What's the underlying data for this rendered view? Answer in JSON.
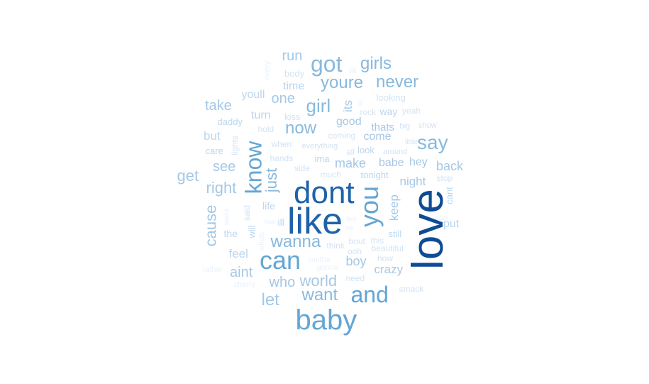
{
  "wordcloud": {
    "palette": {
      "level1": "#e9f2fb",
      "level2": "#d3e3f3",
      "level3": "#bcd6ee",
      "level4": "#a5c8e6",
      "level5": "#88b9dd",
      "level6": "#64a6d4",
      "level7": "#3d84c0",
      "level8": "#1f62a8",
      "level9": "#0f4c95"
    },
    "words": [
      {
        "text": "love",
        "level": 9
      },
      {
        "text": "like",
        "level": 8
      },
      {
        "text": "dont",
        "level": 8
      },
      {
        "text": "baby",
        "level": 6
      },
      {
        "text": "and",
        "level": 6
      },
      {
        "text": "you",
        "level": 6
      },
      {
        "text": "can",
        "level": 6
      },
      {
        "text": "know",
        "level": 6
      },
      {
        "text": "got",
        "level": 5
      },
      {
        "text": "girl",
        "level": 5
      },
      {
        "text": "say",
        "level": 5
      },
      {
        "text": "want",
        "level": 5
      },
      {
        "text": "wanna",
        "level": 5
      },
      {
        "text": "now",
        "level": 5
      },
      {
        "text": "youre",
        "level": 5
      },
      {
        "text": "never",
        "level": 5
      },
      {
        "text": "girls",
        "level": 5
      },
      {
        "text": "just",
        "level": 5
      },
      {
        "text": "let",
        "level": 4
      },
      {
        "text": "world",
        "level": 4
      },
      {
        "text": "who",
        "level": 4
      },
      {
        "text": "aint",
        "level": 4
      },
      {
        "text": "cause",
        "level": 4
      },
      {
        "text": "right",
        "level": 4
      },
      {
        "text": "see",
        "level": 4
      },
      {
        "text": "get",
        "level": 4
      },
      {
        "text": "take",
        "level": 4
      },
      {
        "text": "one",
        "level": 4
      },
      {
        "text": "run",
        "level": 4
      },
      {
        "text": "back",
        "level": 4
      },
      {
        "text": "night",
        "level": 4
      },
      {
        "text": "crazy",
        "level": 4
      },
      {
        "text": "boy",
        "level": 4
      },
      {
        "text": "make",
        "level": 4
      },
      {
        "text": "babe",
        "level": 4
      },
      {
        "text": "hey",
        "level": 4
      },
      {
        "text": "keep",
        "level": 4
      },
      {
        "text": "good",
        "level": 4
      },
      {
        "text": "come",
        "level": 4
      },
      {
        "text": "thats",
        "level": 4
      },
      {
        "text": "its",
        "level": 4
      },
      {
        "text": "time",
        "level": 3
      },
      {
        "text": "youll",
        "level": 3
      },
      {
        "text": "turn",
        "level": 3
      },
      {
        "text": "but",
        "level": 3
      },
      {
        "text": "feel",
        "level": 3
      },
      {
        "text": "put",
        "level": 3
      },
      {
        "text": "cant",
        "level": 3
      },
      {
        "text": "way",
        "level": 3
      },
      {
        "text": "life",
        "level": 3
      },
      {
        "text": "ill",
        "level": 3
      },
      {
        "text": "the",
        "level": 3
      },
      {
        "text": "will",
        "level": 3
      },
      {
        "text": "ima",
        "level": 3
      },
      {
        "text": "daddy",
        "level": 3
      },
      {
        "text": "care",
        "level": 3
      },
      {
        "text": "tonight",
        "level": 3
      },
      {
        "text": "look",
        "level": 3
      },
      {
        "text": "still",
        "level": 3
      },
      {
        "text": "kiss",
        "level": 2
      },
      {
        "text": "body",
        "level": 2
      },
      {
        "text": "looking",
        "level": 2
      },
      {
        "text": "rock",
        "level": 2
      },
      {
        "text": "yeah",
        "level": 2
      },
      {
        "text": "hold",
        "level": 2
      },
      {
        "text": "when",
        "level": 2
      },
      {
        "text": "hands",
        "level": 2
      },
      {
        "text": "side",
        "level": 2
      },
      {
        "text": "lights",
        "level": 2
      },
      {
        "text": "much",
        "level": 2
      },
      {
        "text": "everything",
        "level": 2
      },
      {
        "text": "coming",
        "level": 2
      },
      {
        "text": "all",
        "level": 2
      },
      {
        "text": "around",
        "level": 2
      },
      {
        "text": "little",
        "level": 2
      },
      {
        "text": "big",
        "level": 2
      },
      {
        "text": "show",
        "level": 2
      },
      {
        "text": "stop",
        "level": 2
      },
      {
        "text": "said",
        "level": 2
      },
      {
        "text": "think",
        "level": 2
      },
      {
        "text": "bout",
        "level": 2
      },
      {
        "text": "this",
        "level": 2
      },
      {
        "text": "ooh",
        "level": 2
      },
      {
        "text": "beautiful",
        "level": 2
      },
      {
        "text": "need",
        "level": 2
      },
      {
        "text": "how",
        "level": 2
      },
      {
        "text": "smack",
        "level": 2
      },
      {
        "text": "cherry",
        "level": 1
      },
      {
        "text": "rather",
        "level": 1
      },
      {
        "text": "motha",
        "level": 1
      },
      {
        "text": "gonna",
        "level": 1
      },
      {
        "text": "every",
        "level": 1
      },
      {
        "text": "till",
        "level": 1
      },
      {
        "text": "til",
        "level": 1
      },
      {
        "text": "went",
        "level": 1
      },
      {
        "text": "whats",
        "level": 1
      },
      {
        "text": "man",
        "level": 1
      },
      {
        "text": "ive",
        "level": 1
      },
      {
        "text": "bro",
        "level": 1
      },
      {
        "text": "spo",
        "level": 1
      }
    ]
  }
}
